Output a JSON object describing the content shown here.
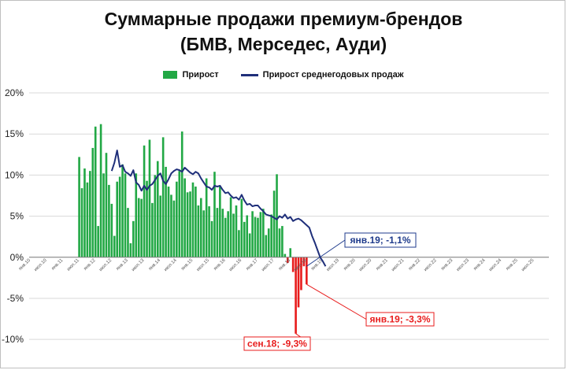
{
  "title_line1": "Суммарные продажи премиум-брендов",
  "title_line2": "(БМВ, Мерседес, Ауди)",
  "colors": {
    "positive_bar": "#22a845",
    "negative_bar": "#e81c1c",
    "line": "#1f2f7a",
    "callout_blue": "#1f3b8c",
    "callout_red": "#e81c1c",
    "grid": "#d9d9d9"
  },
  "chart_data": {
    "type": "bar",
    "series": [
      {
        "name": "Прирост",
        "type": "bar"
      },
      {
        "name": "Прирост среднегодовых продаж",
        "type": "line"
      }
    ],
    "ylim": [
      -12,
      20
    ],
    "y_tick_values": [
      -10,
      -5,
      0,
      5,
      10,
      15,
      20
    ],
    "y_tick_labels": [
      "-10%",
      "-5%",
      "0%",
      "5%",
      "10%",
      "15%",
      "20%"
    ],
    "x_tick_labels": [
      "янв.10",
      "июл.10",
      "янв.11",
      "июл.11",
      "янв.12",
      "июл.12",
      "янв.13",
      "июл.13",
      "янв.14",
      "июл.14",
      "янв.15",
      "июл.15",
      "янв.16",
      "июл.16",
      "янв.17",
      "июл.17",
      "янв.18",
      "июл.18",
      "янв.19",
      "июл.19",
      "янв.20",
      "июл.20",
      "янв.21",
      "июл.21",
      "янв.22",
      "июл.22",
      "янв.23",
      "июл.23",
      "янв.24",
      "июл.24",
      "янв.25",
      "июл.25"
    ],
    "bar_start": "июл.11",
    "bar_values": [
      12.2,
      8.4,
      10.8,
      9.1,
      10.5,
      13.3,
      15.9,
      3.8,
      16.2,
      10.2,
      12.7,
      8.8,
      6.5,
      2.6,
      9.2,
      9.8,
      11.3,
      10.2,
      6.0,
      1.7,
      4.4,
      10.2,
      7.2,
      7.1,
      13.6,
      9.3,
      14.3,
      6.6,
      10.0,
      11.7,
      7.5,
      14.6,
      11.0,
      8.6,
      7.6,
      6.9,
      9.2,
      10.5,
      15.3,
      9.6,
      7.9,
      8.0,
      9.1,
      8.6,
      6.3,
      7.2,
      5.7,
      9.6,
      6.2,
      4.4,
      10.4,
      6.0,
      8.7,
      5.9,
      4.8,
      5.6,
      7.3,
      5.3,
      6.3,
      3.3,
      7.1,
      4.3,
      5.1,
      2.9,
      5.6,
      4.9,
      4.8,
      5.5,
      5.9,
      2.7,
      3.5,
      5.2,
      8.1,
      10.1,
      3.5,
      3.8,
      0.4,
      -0.7,
      1.1,
      -1.8,
      -9.3,
      -6.1,
      -4.0,
      -1.1,
      -3.3
    ],
    "line_start": "июл.12",
    "line_values": [
      10.5,
      11.5,
      13.0,
      11.0,
      11.2,
      10.4,
      10.2,
      9.9,
      10.6,
      9.1,
      8.8,
      8.1,
      8.7,
      8.2,
      8.7,
      8.9,
      9.4,
      9.9,
      10.2,
      9.3,
      8.9,
      9.5,
      10.2,
      10.5,
      10.7,
      10.6,
      10.4,
      10.9,
      10.6,
      10.3,
      10.1,
      10.4,
      10.2,
      9.6,
      9.1,
      8.6,
      8.5,
      8.2,
      8.7,
      8.6,
      8.7,
      8.2,
      7.8,
      7.9,
      7.5,
      7.2,
      7.3,
      7.0,
      7.6,
      6.9,
      6.4,
      6.5,
      6.2,
      6.3,
      6.3,
      5.9,
      5.6,
      5.2,
      5.1,
      5.0,
      4.8,
      4.6,
      5.0,
      4.8,
      5.2,
      4.7,
      4.9,
      4.4,
      4.6,
      4.7,
      4.5,
      4.2,
      3.9,
      3.6,
      2.6,
      1.8,
      0.9,
      0.0,
      -0.5,
      -1.1
    ],
    "annotations": [
      {
        "text": "сен.18; -9,3%",
        "color": "red"
      },
      {
        "text": "янв.19; -3,3%",
        "color": "red"
      },
      {
        "text": "янв.19; -1,1%",
        "color": "blue"
      }
    ]
  }
}
